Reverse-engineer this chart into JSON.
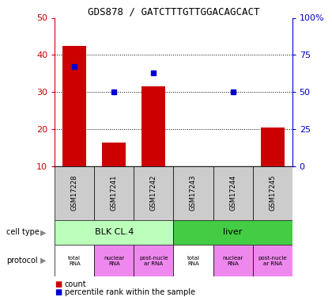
{
  "title": "GDS878 / GATCTTTGTTGGACAGCACT",
  "samples": [
    "GSM17228",
    "GSM17241",
    "GSM17242",
    "GSM17243",
    "GSM17244",
    "GSM17245"
  ],
  "counts": [
    42.5,
    16.5,
    31.5,
    null,
    null,
    20.5
  ],
  "percentiles_pct": [
    67,
    50,
    63,
    null,
    50,
    null
  ],
  "left_ylim": [
    10,
    50
  ],
  "right_ylim": [
    0,
    100
  ],
  "left_ticks": [
    10,
    20,
    30,
    40,
    50
  ],
  "right_ticks": [
    0,
    25,
    50,
    75,
    100
  ],
  "right_tick_labels": [
    "0",
    "25",
    "50",
    "75",
    "100%"
  ],
  "cell_types": [
    {
      "label": "BLK CL.4",
      "span": [
        0,
        3
      ],
      "color": "#bbffbb"
    },
    {
      "label": "liver",
      "span": [
        3,
        6
      ],
      "color": "#44cc44"
    }
  ],
  "protocols": [
    {
      "label": "total\nRNA",
      "color": "#ffffff"
    },
    {
      "label": "nuclear\nRNA",
      "color": "#ee88ee"
    },
    {
      "label": "post-nucle\nar RNA",
      "color": "#ee88ee"
    },
    {
      "label": "total\nRNA",
      "color": "#ffffff"
    },
    {
      "label": "nuclear\nRNA",
      "color": "#ee88ee"
    },
    {
      "label": "post-nucle\nar RNA",
      "color": "#ee88ee"
    }
  ],
  "bar_color": "#cc0000",
  "dot_color": "#0000cc",
  "sample_bg_color": "#cccccc",
  "left_axis_color": "#cc0000",
  "right_axis_color": "#0000cc",
  "fig_width": 4.2,
  "fig_height": 3.75,
  "dpi": 100
}
